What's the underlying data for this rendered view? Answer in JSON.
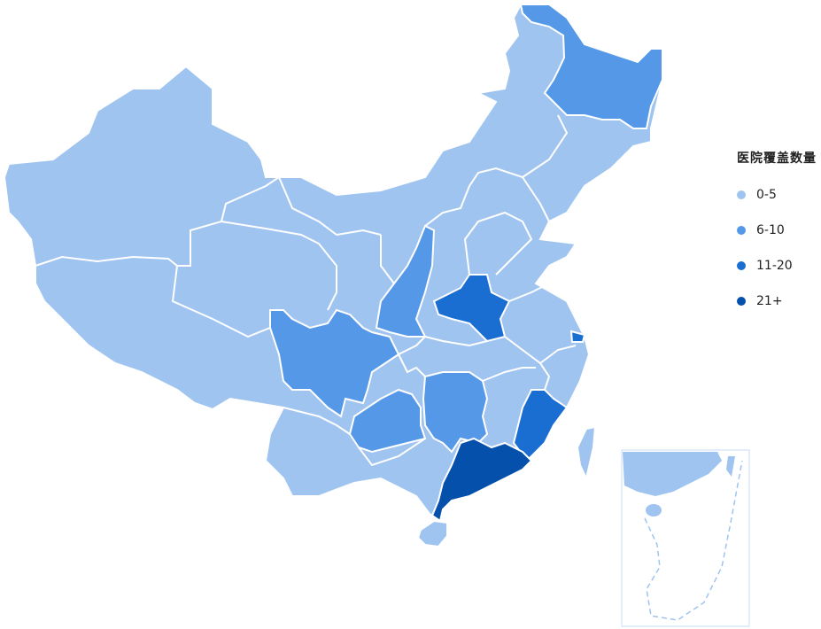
{
  "legend": {
    "title": "医院覆盖数量",
    "items": [
      {
        "label": "0-5",
        "color": "#A0C4F0"
      },
      {
        "label": "6-10",
        "color": "#5598E8"
      },
      {
        "label": "11-20",
        "color": "#1A6ED2"
      },
      {
        "label": "21+",
        "color": "#0550AA"
      }
    ]
  },
  "colors": {
    "border": "#FFFFFF",
    "inset_border": "#C8DCF5"
  },
  "region_levels": {
    "heilongjiang": 1,
    "shaanxi": 1,
    "sichuan": 1,
    "guizhou": 1,
    "hunan": 1,
    "henan": 2,
    "fujian": 2,
    "shanghai": 2,
    "guangdong": 3
  }
}
